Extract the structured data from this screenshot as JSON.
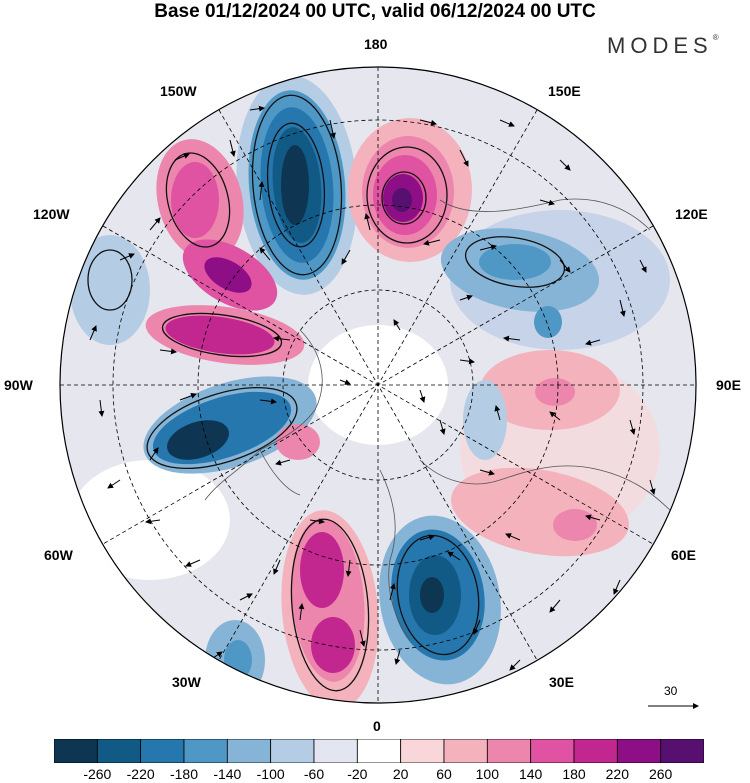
{
  "header": {
    "title": "Base 01/12/2024 00 UTC, valid 06/12/2024 00 UTC",
    "logo_text": "MODES",
    "logo_mark": "®"
  },
  "map": {
    "projection": "north-polar-stereographic",
    "longitude_labels": {
      "top": "180",
      "top_left": "150W",
      "top_right": "150E",
      "upper_left": "120W",
      "upper_right": "120E",
      "left": "90W",
      "right": "90E",
      "lower_left": "60W",
      "lower_right": "60E",
      "bottom_left": "30W",
      "bottom_right": "30E",
      "bottom": "0"
    },
    "reference_vector": {
      "value": "30"
    },
    "anomaly_centers": [
      {
        "sign": "negative",
        "color": "#0f3c5c"
      },
      {
        "sign": "positive",
        "color": "#7a0d85"
      },
      {
        "sign": "negative",
        "color": "#1b5f8c"
      },
      {
        "sign": "positive",
        "color": "#c2278f"
      }
    ]
  },
  "colorbar": {
    "colors": [
      "#0e3551",
      "#115a86",
      "#2677ad",
      "#4f98c6",
      "#86b4d6",
      "#b5cde4",
      "#e3e5f1",
      "#ffffff",
      "#f9d6d9",
      "#f4b2bd",
      "#ed86ad",
      "#e052a2",
      "#c2278f",
      "#8e0e85",
      "#57106f"
    ],
    "tick_labels": [
      "-260",
      "-220",
      "-180",
      "-140",
      "-100",
      "-60",
      "-20",
      "20",
      "60",
      "100",
      "140",
      "180",
      "220",
      "260"
    ]
  }
}
